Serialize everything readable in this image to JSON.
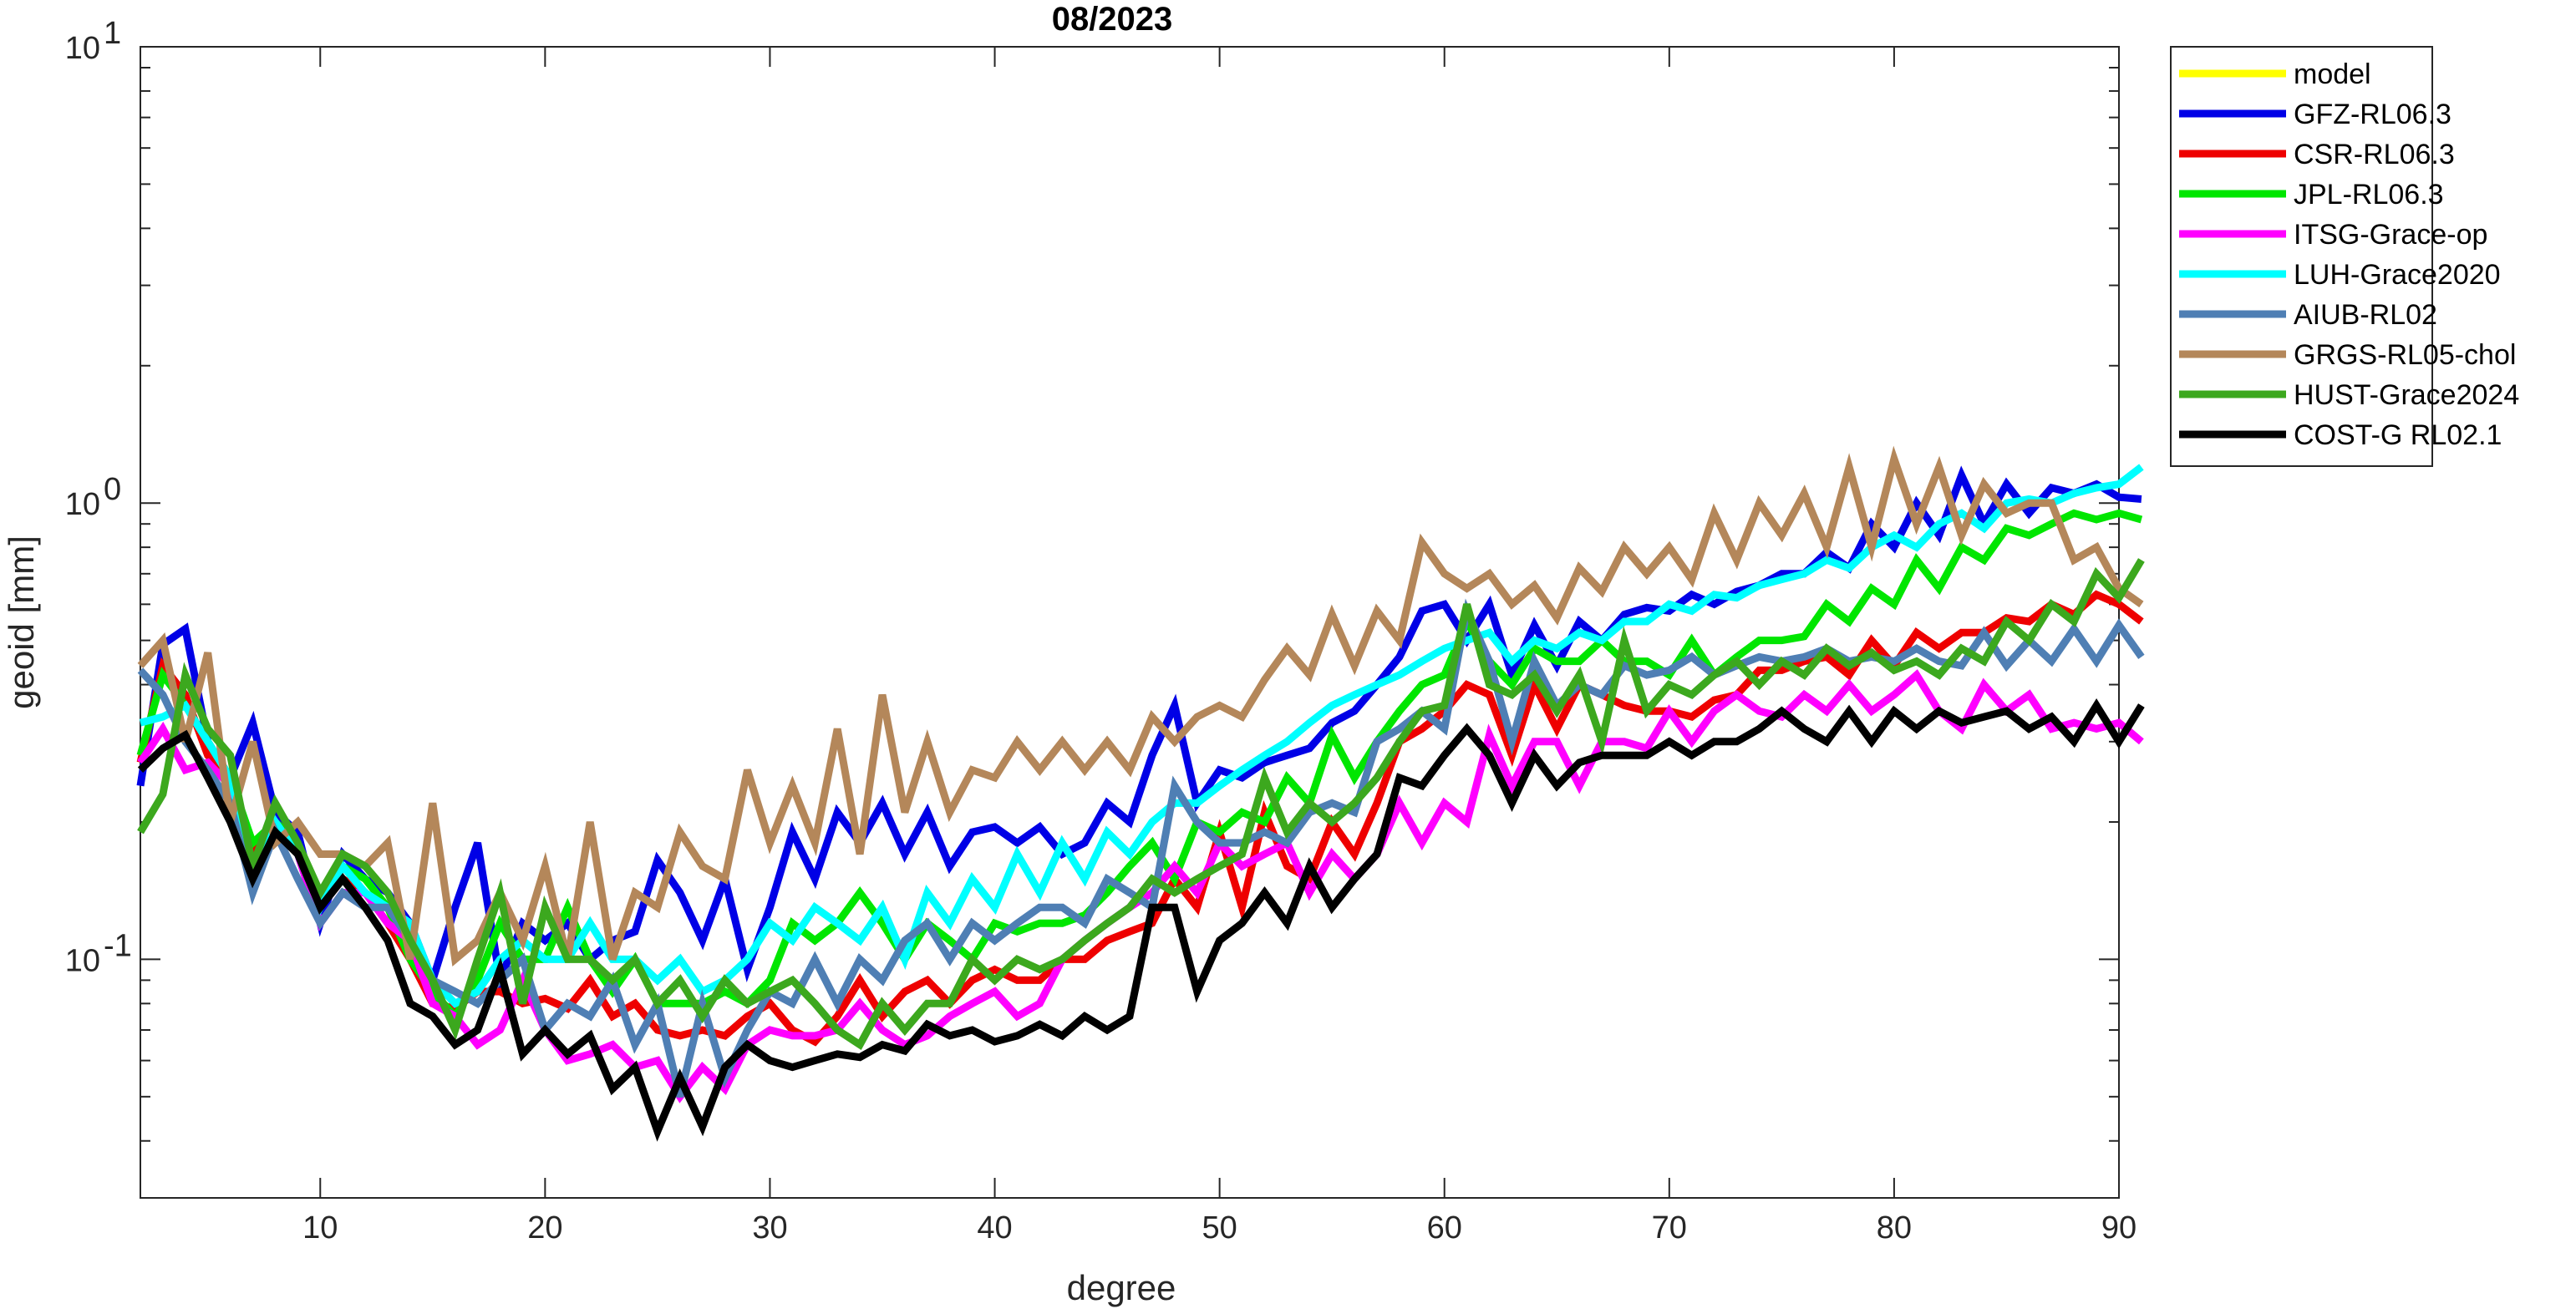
{
  "chart_data": {
    "type": "line",
    "title": "08/2023",
    "xlabel": "degree",
    "ylabel": "geoid [mm]",
    "xlim": [
      2,
      90
    ],
    "ylim": [
      0.03,
      10
    ],
    "yscale": "log",
    "xticks": [
      10,
      20,
      30,
      40,
      50,
      60,
      70,
      80,
      90
    ],
    "xtick_labels": [
      "10",
      "20",
      "30",
      "40",
      "50",
      "60",
      "70",
      "80",
      "90"
    ],
    "yticks": [
      {
        "value": 10,
        "base": "10",
        "exp": "1"
      },
      {
        "value": 1,
        "base": "10",
        "exp": "0"
      },
      {
        "value": 0.1,
        "base": "10",
        "exp": "-1"
      }
    ],
    "grid": false,
    "legend_position": "outside-top-right",
    "x_start": 2,
    "series": [
      {
        "name": "model",
        "color": "#ffff00",
        "values": []
      },
      {
        "name": "GFZ-RL06.3",
        "color": "#0000e6",
        "values": [
          0.24,
          0.49,
          0.53,
          0.3,
          0.25,
          0.33,
          0.21,
          0.19,
          0.12,
          0.17,
          0.15,
          0.14,
          0.12,
          0.09,
          0.13,
          0.18,
          0.09,
          0.12,
          0.11,
          0.12,
          0.1,
          0.11,
          0.115,
          0.165,
          0.14,
          0.11,
          0.15,
          0.095,
          0.13,
          0.19,
          0.15,
          0.21,
          0.18,
          0.22,
          0.17,
          0.21,
          0.16,
          0.19,
          0.195,
          0.18,
          0.195,
          0.17,
          0.18,
          0.22,
          0.2,
          0.28,
          0.36,
          0.22,
          0.26,
          0.25,
          0.27,
          0.28,
          0.29,
          0.33,
          0.35,
          0.4,
          0.46,
          0.58,
          0.6,
          0.5,
          0.6,
          0.42,
          0.54,
          0.44,
          0.55,
          0.5,
          0.57,
          0.59,
          0.58,
          0.63,
          0.6,
          0.64,
          0.66,
          0.7,
          0.7,
          0.78,
          0.72,
          0.9,
          0.8,
          1.0,
          0.85,
          1.15,
          0.9,
          1.1,
          0.95,
          1.08,
          1.05,
          1.1,
          1.03,
          1.02
        ]
      },
      {
        "name": "CSR-RL06.3",
        "color": "#ee0000",
        "values": [
          0.27,
          0.44,
          0.38,
          0.28,
          0.25,
          0.17,
          0.2,
          0.17,
          0.14,
          0.15,
          0.14,
          0.12,
          0.1,
          0.08,
          0.078,
          0.085,
          0.085,
          0.08,
          0.082,
          0.078,
          0.09,
          0.075,
          0.08,
          0.07,
          0.068,
          0.07,
          0.068,
          0.075,
          0.08,
          0.07,
          0.066,
          0.075,
          0.09,
          0.075,
          0.085,
          0.09,
          0.08,
          0.09,
          0.095,
          0.09,
          0.09,
          0.1,
          0.1,
          0.11,
          0.115,
          0.12,
          0.15,
          0.13,
          0.19,
          0.13,
          0.21,
          0.16,
          0.15,
          0.2,
          0.17,
          0.22,
          0.3,
          0.32,
          0.35,
          0.4,
          0.38,
          0.28,
          0.4,
          0.32,
          0.4,
          0.38,
          0.36,
          0.35,
          0.35,
          0.34,
          0.37,
          0.38,
          0.43,
          0.43,
          0.45,
          0.46,
          0.42,
          0.5,
          0.44,
          0.52,
          0.48,
          0.52,
          0.52,
          0.56,
          0.55,
          0.6,
          0.57,
          0.63,
          0.6,
          0.55
        ]
      },
      {
        "name": "JPL-RL06.3",
        "color": "#00e600",
        "values": [
          0.28,
          0.42,
          0.36,
          0.3,
          0.25,
          0.18,
          0.2,
          0.18,
          0.13,
          0.16,
          0.15,
          0.13,
          0.1,
          0.085,
          0.075,
          0.09,
          0.12,
          0.1,
          0.1,
          0.13,
          0.1,
          0.085,
          0.1,
          0.08,
          0.08,
          0.08,
          0.085,
          0.08,
          0.09,
          0.12,
          0.11,
          0.12,
          0.14,
          0.12,
          0.1,
          0.12,
          0.11,
          0.1,
          0.12,
          0.115,
          0.12,
          0.12,
          0.125,
          0.14,
          0.16,
          0.18,
          0.15,
          0.2,
          0.19,
          0.21,
          0.2,
          0.25,
          0.22,
          0.31,
          0.25,
          0.3,
          0.35,
          0.4,
          0.42,
          0.55,
          0.45,
          0.4,
          0.48,
          0.45,
          0.45,
          0.5,
          0.45,
          0.45,
          0.42,
          0.5,
          0.42,
          0.46,
          0.5,
          0.5,
          0.51,
          0.6,
          0.55,
          0.65,
          0.6,
          0.75,
          0.65,
          0.8,
          0.75,
          0.88,
          0.85,
          0.9,
          0.95,
          0.92,
          0.95,
          0.92
        ]
      },
      {
        "name": "ITSG-Grace-op",
        "color": "#ff00ff",
        "values": [
          0.27,
          0.32,
          0.26,
          0.27,
          0.24,
          0.16,
          0.2,
          0.17,
          0.12,
          0.14,
          0.14,
          0.12,
          0.11,
          0.08,
          0.075,
          0.065,
          0.07,
          0.09,
          0.07,
          0.06,
          0.062,
          0.065,
          0.058,
          0.06,
          0.05,
          0.058,
          0.052,
          0.065,
          0.07,
          0.068,
          0.068,
          0.07,
          0.08,
          0.07,
          0.065,
          0.068,
          0.075,
          0.08,
          0.085,
          0.075,
          0.08,
          0.1,
          0.11,
          0.12,
          0.13,
          0.14,
          0.16,
          0.14,
          0.18,
          0.16,
          0.17,
          0.18,
          0.14,
          0.17,
          0.15,
          0.17,
          0.22,
          0.18,
          0.22,
          0.2,
          0.31,
          0.24,
          0.3,
          0.3,
          0.24,
          0.3,
          0.3,
          0.29,
          0.35,
          0.3,
          0.35,
          0.38,
          0.35,
          0.34,
          0.38,
          0.35,
          0.4,
          0.35,
          0.38,
          0.42,
          0.35,
          0.32,
          0.4,
          0.35,
          0.38,
          0.32,
          0.33,
          0.32,
          0.33,
          0.3
        ]
      },
      {
        "name": "LUH-Grace2020",
        "color": "#00ffff",
        "values": [
          0.33,
          0.34,
          0.36,
          0.3,
          0.25,
          0.16,
          0.2,
          0.17,
          0.13,
          0.16,
          0.14,
          0.13,
          0.12,
          0.09,
          0.08,
          0.085,
          0.1,
          0.11,
          0.1,
          0.1,
          0.12,
          0.1,
          0.1,
          0.09,
          0.1,
          0.085,
          0.09,
          0.1,
          0.12,
          0.11,
          0.13,
          0.12,
          0.11,
          0.13,
          0.1,
          0.14,
          0.12,
          0.15,
          0.13,
          0.17,
          0.14,
          0.18,
          0.15,
          0.19,
          0.17,
          0.2,
          0.22,
          0.22,
          0.24,
          0.26,
          0.28,
          0.3,
          0.33,
          0.36,
          0.38,
          0.4,
          0.42,
          0.45,
          0.48,
          0.5,
          0.52,
          0.45,
          0.5,
          0.48,
          0.52,
          0.5,
          0.55,
          0.55,
          0.6,
          0.58,
          0.63,
          0.62,
          0.66,
          0.68,
          0.7,
          0.75,
          0.72,
          0.8,
          0.85,
          0.8,
          0.9,
          0.95,
          0.88,
          1.0,
          1.02,
          1.0,
          1.05,
          1.08,
          1.1,
          1.2
        ]
      },
      {
        "name": "AIUB-RL02",
        "color": "#4f7fb4",
        "values": [
          0.43,
          0.38,
          0.3,
          0.26,
          0.22,
          0.14,
          0.19,
          0.15,
          0.12,
          0.14,
          0.13,
          0.13,
          0.11,
          0.09,
          0.085,
          0.08,
          0.09,
          0.1,
          0.07,
          0.08,
          0.075,
          0.09,
          0.065,
          0.08,
          0.05,
          0.08,
          0.055,
          0.07,
          0.085,
          0.08,
          0.1,
          0.08,
          0.1,
          0.09,
          0.11,
          0.12,
          0.1,
          0.12,
          0.11,
          0.12,
          0.13,
          0.13,
          0.12,
          0.15,
          0.14,
          0.13,
          0.24,
          0.2,
          0.18,
          0.18,
          0.19,
          0.18,
          0.21,
          0.22,
          0.21,
          0.3,
          0.32,
          0.35,
          0.32,
          0.58,
          0.45,
          0.3,
          0.45,
          0.36,
          0.4,
          0.38,
          0.44,
          0.42,
          0.43,
          0.46,
          0.42,
          0.44,
          0.46,
          0.45,
          0.46,
          0.48,
          0.45,
          0.46,
          0.45,
          0.48,
          0.45,
          0.44,
          0.52,
          0.44,
          0.5,
          0.45,
          0.53,
          0.45,
          0.54,
          0.46
        ]
      },
      {
        "name": "GRGS-RL05-chol",
        "color": "#b4875a",
        "values": [
          0.44,
          0.5,
          0.3,
          0.47,
          0.2,
          0.3,
          0.18,
          0.2,
          0.17,
          0.17,
          0.16,
          0.18,
          0.1,
          0.22,
          0.1,
          0.11,
          0.14,
          0.11,
          0.16,
          0.1,
          0.2,
          0.1,
          0.14,
          0.13,
          0.19,
          0.16,
          0.15,
          0.26,
          0.18,
          0.24,
          0.18,
          0.32,
          0.17,
          0.38,
          0.21,
          0.3,
          0.21,
          0.26,
          0.25,
          0.3,
          0.26,
          0.3,
          0.26,
          0.3,
          0.26,
          0.34,
          0.3,
          0.34,
          0.36,
          0.34,
          0.41,
          0.48,
          0.42,
          0.57,
          0.44,
          0.58,
          0.5,
          0.82,
          0.7,
          0.65,
          0.7,
          0.6,
          0.66,
          0.56,
          0.72,
          0.64,
          0.8,
          0.7,
          0.8,
          0.68,
          0.95,
          0.75,
          1.0,
          0.85,
          1.05,
          0.8,
          1.2,
          0.8,
          1.25,
          0.9,
          1.2,
          0.85,
          1.1,
          0.95,
          1.0,
          1.0,
          0.75,
          0.8,
          0.65,
          0.6
        ]
      },
      {
        "name": "HUST-Grace2024",
        "color": "#3ca81e",
        "values": [
          0.19,
          0.23,
          0.42,
          0.32,
          0.28,
          0.16,
          0.22,
          0.18,
          0.14,
          0.17,
          0.16,
          0.14,
          0.11,
          0.09,
          0.07,
          0.1,
          0.14,
          0.08,
          0.13,
          0.1,
          0.1,
          0.09,
          0.1,
          0.08,
          0.09,
          0.075,
          0.09,
          0.08,
          0.085,
          0.09,
          0.08,
          0.07,
          0.065,
          0.08,
          0.07,
          0.08,
          0.08,
          0.1,
          0.09,
          0.1,
          0.095,
          0.1,
          0.11,
          0.12,
          0.13,
          0.15,
          0.14,
          0.15,
          0.16,
          0.17,
          0.25,
          0.19,
          0.22,
          0.2,
          0.22,
          0.25,
          0.3,
          0.35,
          0.36,
          0.6,
          0.4,
          0.38,
          0.42,
          0.35,
          0.42,
          0.3,
          0.5,
          0.35,
          0.4,
          0.38,
          0.42,
          0.45,
          0.4,
          0.45,
          0.42,
          0.48,
          0.44,
          0.47,
          0.43,
          0.45,
          0.42,
          0.48,
          0.45,
          0.55,
          0.5,
          0.6,
          0.55,
          0.7,
          0.62,
          0.75
        ]
      },
      {
        "name": "COST-G RL02.1",
        "color": "#000000",
        "values": [
          0.26,
          0.29,
          0.31,
          0.25,
          0.2,
          0.15,
          0.19,
          0.17,
          0.13,
          0.15,
          0.13,
          0.11,
          0.08,
          0.075,
          0.065,
          0.07,
          0.095,
          0.062,
          0.07,
          0.062,
          0.068,
          0.052,
          0.058,
          0.042,
          0.055,
          0.043,
          0.058,
          0.065,
          0.06,
          0.058,
          0.06,
          0.062,
          0.061,
          0.065,
          0.063,
          0.072,
          0.068,
          0.07,
          0.066,
          0.068,
          0.072,
          0.068,
          0.075,
          0.07,
          0.075,
          0.13,
          0.13,
          0.085,
          0.11,
          0.12,
          0.14,
          0.12,
          0.16,
          0.13,
          0.15,
          0.17,
          0.25,
          0.24,
          0.28,
          0.32,
          0.28,
          0.22,
          0.28,
          0.24,
          0.27,
          0.28,
          0.28,
          0.28,
          0.3,
          0.28,
          0.3,
          0.3,
          0.32,
          0.35,
          0.32,
          0.3,
          0.35,
          0.3,
          0.35,
          0.32,
          0.35,
          0.33,
          0.34,
          0.35,
          0.32,
          0.34,
          0.3,
          0.36,
          0.3,
          0.36
        ]
      }
    ]
  }
}
